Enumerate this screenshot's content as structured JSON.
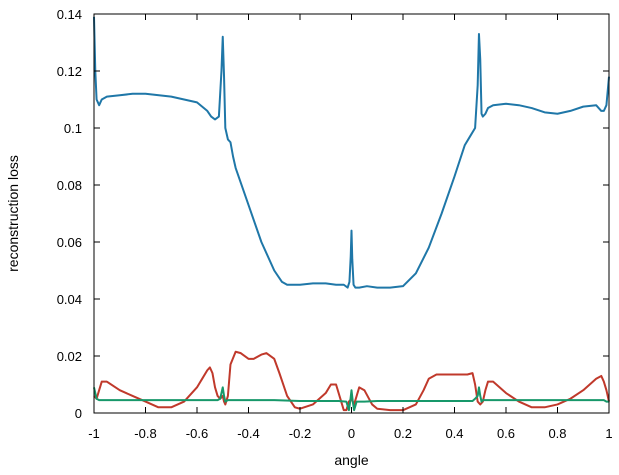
{
  "chart_data": {
    "type": "line",
    "title": "",
    "xlabel": "angle",
    "ylabel": "reconstruction loss",
    "xlim": [
      -1,
      1
    ],
    "ylim": [
      0,
      0.14
    ],
    "x_ticks": [
      -1,
      -0.8,
      -0.6,
      -0.4,
      -0.2,
      0,
      0.2,
      0.4,
      0.6,
      0.8,
      1
    ],
    "x_tick_labels": [
      "-1",
      "-0.8",
      "-0.6",
      "-0.4",
      "-0.2",
      "0",
      "0.2",
      "0.4",
      "0.6",
      "0.8",
      "1"
    ],
    "y_ticks": [
      0,
      0.02,
      0.04,
      0.06,
      0.08,
      0.1,
      0.12,
      0.14
    ],
    "y_tick_labels": [
      "0",
      "0.02",
      "0.04",
      "0.06",
      "0.08",
      "0.1",
      "0.12",
      "0.14"
    ],
    "grid": false,
    "legend": "none",
    "series": [
      {
        "color": "#1f77a8",
        "x": [
          -1.0,
          -0.995,
          -0.99,
          -0.98,
          -0.97,
          -0.95,
          -0.9,
          -0.85,
          -0.8,
          -0.7,
          -0.65,
          -0.6,
          -0.56,
          -0.545,
          -0.53,
          -0.515,
          -0.505,
          -0.5,
          -0.495,
          -0.49,
          -0.48,
          -0.47,
          -0.46,
          -0.45,
          -0.4,
          -0.35,
          -0.3,
          -0.27,
          -0.25,
          -0.2,
          -0.15,
          -0.1,
          -0.06,
          -0.03,
          -0.015,
          -0.008,
          -0.003,
          0.0,
          0.003,
          0.008,
          0.015,
          0.03,
          0.06,
          0.1,
          0.15,
          0.2,
          0.25,
          0.3,
          0.35,
          0.4,
          0.44,
          0.46,
          0.48,
          0.49,
          0.495,
          0.5,
          0.505,
          0.51,
          0.52,
          0.53,
          0.55,
          0.6,
          0.65,
          0.7,
          0.75,
          0.8,
          0.85,
          0.9,
          0.95,
          0.97,
          0.98,
          0.99,
          1.0
        ],
        "y": [
          0.139,
          0.12,
          0.11,
          0.108,
          0.11,
          0.111,
          0.1115,
          0.112,
          0.112,
          0.111,
          0.11,
          0.109,
          0.106,
          0.104,
          0.103,
          0.104,
          0.12,
          0.132,
          0.118,
          0.1,
          0.096,
          0.095,
          0.09,
          0.086,
          0.073,
          0.06,
          0.05,
          0.046,
          0.045,
          0.045,
          0.0455,
          0.0455,
          0.045,
          0.045,
          0.044,
          0.046,
          0.055,
          0.064,
          0.054,
          0.045,
          0.044,
          0.044,
          0.0445,
          0.044,
          0.044,
          0.0445,
          0.049,
          0.058,
          0.07,
          0.083,
          0.094,
          0.097,
          0.1,
          0.115,
          0.133,
          0.124,
          0.105,
          0.104,
          0.105,
          0.107,
          0.108,
          0.1085,
          0.108,
          0.107,
          0.1055,
          0.105,
          0.106,
          0.1075,
          0.108,
          0.106,
          0.106,
          0.108,
          0.118
        ]
      },
      {
        "color": "#c0392b",
        "x": [
          -1.0,
          -0.99,
          -0.98,
          -0.97,
          -0.95,
          -0.9,
          -0.85,
          -0.8,
          -0.75,
          -0.7,
          -0.65,
          -0.6,
          -0.58,
          -0.56,
          -0.55,
          -0.54,
          -0.53,
          -0.52,
          -0.51,
          -0.5,
          -0.495,
          -0.49,
          -0.48,
          -0.47,
          -0.45,
          -0.43,
          -0.4,
          -0.38,
          -0.35,
          -0.33,
          -0.3,
          -0.28,
          -0.25,
          -0.22,
          -0.2,
          -0.15,
          -0.1,
          -0.08,
          -0.06,
          -0.04,
          -0.03,
          -0.02,
          -0.01,
          0.0,
          0.01,
          0.02,
          0.03,
          0.05,
          0.08,
          0.1,
          0.15,
          0.2,
          0.25,
          0.28,
          0.3,
          0.33,
          0.36,
          0.4,
          0.45,
          0.47,
          0.48,
          0.49,
          0.5,
          0.51,
          0.52,
          0.53,
          0.55,
          0.6,
          0.65,
          0.7,
          0.75,
          0.8,
          0.85,
          0.9,
          0.95,
          0.97,
          0.98,
          0.99,
          1.0
        ],
        "y": [
          0.006,
          0.005,
          0.008,
          0.011,
          0.011,
          0.008,
          0.006,
          0.004,
          0.002,
          0.002,
          0.004,
          0.009,
          0.012,
          0.015,
          0.016,
          0.014,
          0.009,
          0.006,
          0.005,
          0.006,
          0.004,
          0.003,
          0.006,
          0.017,
          0.0215,
          0.021,
          0.019,
          0.019,
          0.0205,
          0.021,
          0.019,
          0.014,
          0.006,
          0.002,
          0.0015,
          0.003,
          0.007,
          0.01,
          0.01,
          0.004,
          0.001,
          0.001,
          0.004,
          0.005,
          0.003,
          0.006,
          0.009,
          0.008,
          0.003,
          0.0015,
          0.001,
          0.001,
          0.003,
          0.008,
          0.012,
          0.0135,
          0.0135,
          0.0135,
          0.0135,
          0.014,
          0.01,
          0.004,
          0.003,
          0.004,
          0.008,
          0.011,
          0.011,
          0.007,
          0.004,
          0.002,
          0.002,
          0.003,
          0.005,
          0.008,
          0.012,
          0.013,
          0.011,
          0.008,
          0.004
        ]
      },
      {
        "color": "#17986a",
        "x": [
          -1.0,
          -0.995,
          -0.99,
          -0.98,
          -0.95,
          -0.9,
          -0.8,
          -0.7,
          -0.6,
          -0.52,
          -0.51,
          -0.505,
          -0.5,
          -0.495,
          -0.49,
          -0.48,
          -0.45,
          -0.4,
          -0.3,
          -0.2,
          -0.1,
          -0.05,
          -0.02,
          -0.01,
          -0.005,
          0.0,
          0.005,
          0.01,
          0.02,
          0.05,
          0.1,
          0.2,
          0.3,
          0.4,
          0.47,
          0.48,
          0.49,
          0.495,
          0.5,
          0.505,
          0.51,
          0.52,
          0.6,
          0.7,
          0.8,
          0.9,
          0.97,
          0.98,
          0.99,
          1.0
        ],
        "y": [
          0.009,
          0.007,
          0.005,
          0.0045,
          0.0045,
          0.0045,
          0.0045,
          0.0045,
          0.0045,
          0.0045,
          0.005,
          0.007,
          0.009,
          0.006,
          0.004,
          0.0045,
          0.0045,
          0.0045,
          0.0045,
          0.0042,
          0.0042,
          0.0042,
          0.004,
          0.001,
          0.004,
          0.008,
          0.004,
          0.001,
          0.004,
          0.004,
          0.0042,
          0.0042,
          0.0042,
          0.0042,
          0.0042,
          0.005,
          0.006,
          0.009,
          0.006,
          0.004,
          0.0045,
          0.0045,
          0.0045,
          0.0045,
          0.0045,
          0.0045,
          0.0045,
          0.0045,
          0.004,
          0.004
        ]
      }
    ]
  }
}
